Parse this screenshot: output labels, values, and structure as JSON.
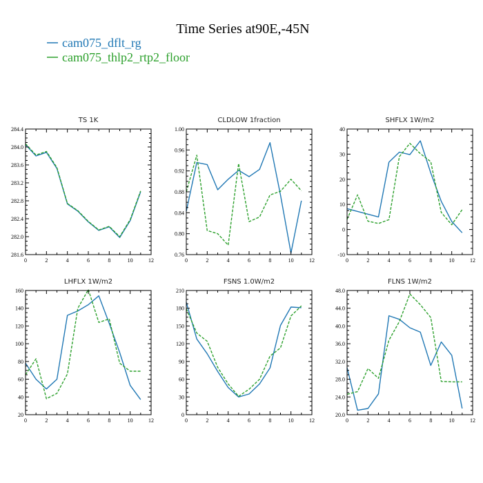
{
  "figure": {
    "title": "Time Series at90E,-45N",
    "legend": {
      "placement": "top-left",
      "entries": [
        {
          "label": "cam075_dflt_rg",
          "color": "#1f77b4",
          "dash": "solid"
        },
        {
          "label": "cam075_thlp2_rtp2_floor",
          "color": "#2ca02c",
          "dash": "dashed"
        }
      ]
    }
  },
  "chart_data": [
    {
      "type": "line",
      "title": "TS  1K",
      "x": [
        0,
        1,
        2,
        3,
        4,
        5,
        6,
        7,
        8,
        9,
        10,
        11
      ],
      "xlim": [
        0,
        12
      ],
      "xticks": [
        "0",
        "2",
        "4",
        "6",
        "8",
        "10",
        "12"
      ],
      "ylim": [
        281.6,
        284.4
      ],
      "yticks": [
        "281.6",
        "282.0",
        "282.4",
        "282.8",
        "283.2",
        "283.6",
        "284.0",
        "284.4"
      ],
      "series": [
        {
          "name": "cam075_dflt_rg",
          "color": "#1f77b4",
          "values": [
            284.05,
            283.8,
            283.88,
            283.52,
            282.73,
            282.57,
            282.33,
            282.14,
            282.22,
            281.98,
            282.36,
            283.0
          ]
        },
        {
          "name": "cam075_thlp2_rtp2_floor",
          "color": "#2ca02c",
          "values": [
            284.07,
            283.82,
            283.9,
            283.54,
            282.74,
            282.58,
            282.34,
            282.15,
            282.23,
            282.0,
            282.38,
            283.02
          ]
        }
      ]
    },
    {
      "type": "line",
      "title": "CLDLOW  1fraction",
      "x": [
        0,
        1,
        2,
        3,
        4,
        5,
        6,
        7,
        8,
        9,
        10,
        11
      ],
      "xlim": [
        0,
        12
      ],
      "xticks": [
        "0",
        "2",
        "4",
        "6",
        "8",
        "10",
        "12"
      ],
      "ylim": [
        0.76,
        1.0
      ],
      "yticks": [
        "0.76",
        "0.80",
        "0.84",
        "0.88",
        "0.92",
        "0.96",
        "1.00"
      ],
      "series": [
        {
          "name": "cam075_dflt_rg",
          "color": "#1f77b4",
          "values": [
            0.843,
            0.936,
            0.932,
            0.884,
            0.904,
            0.921,
            0.909,
            0.923,
            0.974,
            0.874,
            0.763,
            0.863
          ]
        },
        {
          "name": "cam075_thlp2_rtp2_floor",
          "color": "#2ca02c",
          "values": [
            0.88,
            0.95,
            0.806,
            0.8,
            0.778,
            0.934,
            0.823,
            0.832,
            0.874,
            0.881,
            0.904,
            0.882
          ]
        }
      ]
    },
    {
      "type": "line",
      "title": "SHFLX  1W/m2",
      "x": [
        0,
        1,
        2,
        3,
        4,
        5,
        6,
        7,
        8,
        9,
        10,
        11
      ],
      "xlim": [
        0,
        12
      ],
      "xticks": [
        "0",
        "2",
        "4",
        "6",
        "8",
        "10",
        "12"
      ],
      "ylim": [
        -10,
        40
      ],
      "yticks": [
        "-10",
        "0",
        "10",
        "20",
        "30",
        "40"
      ],
      "series": [
        {
          "name": "cam075_dflt_rg",
          "color": "#1f77b4",
          "values": [
            8.3,
            7.2,
            6.1,
            5.0,
            26.8,
            30.8,
            29.8,
            35.3,
            22.5,
            11.2,
            3.2,
            -1.3
          ]
        },
        {
          "name": "cam075_thlp2_rtp2_floor",
          "color": "#2ca02c",
          "values": [
            4.0,
            13.8,
            3.3,
            2.4,
            3.9,
            29.0,
            34.3,
            30.2,
            27.0,
            6.8,
            1.9,
            7.9
          ]
        }
      ]
    },
    {
      "type": "line",
      "title": "LHFLX  1W/m2",
      "x": [
        0,
        1,
        2,
        3,
        4,
        5,
        6,
        7,
        8,
        9,
        10,
        11
      ],
      "xlim": [
        0,
        12
      ],
      "xticks": [
        "0",
        "2",
        "4",
        "6",
        "8",
        "10",
        "12"
      ],
      "ylim": [
        20,
        160
      ],
      "yticks": [
        "20",
        "40",
        "60",
        "80",
        "100",
        "120",
        "140",
        "160"
      ],
      "series": [
        {
          "name": "cam075_dflt_rg",
          "color": "#1f77b4",
          "values": [
            78,
            60,
            49,
            60,
            132,
            137,
            144,
            154,
            123,
            90,
            53,
            37
          ]
        },
        {
          "name": "cam075_thlp2_rtp2_floor",
          "color": "#2ca02c",
          "values": [
            65,
            83,
            38,
            44,
            66,
            140,
            161,
            124,
            128,
            78,
            69,
            69
          ]
        }
      ]
    },
    {
      "type": "line",
      "title": "FSNS  1.0W/m2",
      "x": [
        0,
        1,
        2,
        3,
        4,
        5,
        6,
        7,
        8,
        9,
        10,
        11
      ],
      "xlim": [
        0,
        12
      ],
      "xticks": [
        "0",
        "2",
        "4",
        "6",
        "8",
        "10",
        "12"
      ],
      "ylim": [
        0,
        210
      ],
      "yticks": [
        "0",
        "30",
        "60",
        "90",
        "120",
        "150",
        "180",
        "210"
      ],
      "series": [
        {
          "name": "cam075_dflt_rg",
          "color": "#1f77b4",
          "values": [
            190,
            128,
            103,
            73,
            46,
            30,
            35,
            52,
            79,
            151,
            182,
            181
          ]
        },
        {
          "name": "cam075_thlp2_rtp2_floor",
          "color": "#2ca02c",
          "values": [
            179,
            138,
            124,
            80,
            52,
            31,
            43,
            60,
            99,
            113,
            167,
            184
          ]
        }
      ]
    },
    {
      "type": "line",
      "title": "FLNS  1W/m2",
      "x": [
        0,
        1,
        2,
        3,
        4,
        5,
        6,
        7,
        8,
        9,
        10,
        11
      ],
      "xlim": [
        0,
        12
      ],
      "xticks": [
        "0",
        "2",
        "4",
        "6",
        "8",
        "10",
        "12"
      ],
      "ylim": [
        20,
        48
      ],
      "yticks": [
        "20.0",
        "24.0",
        "28.0",
        "32.0",
        "36.0",
        "40.0",
        "44.0",
        "48.0"
      ],
      "series": [
        {
          "name": "cam075_dflt_rg",
          "color": "#1f77b4",
          "values": [
            30.6,
            21.0,
            21.4,
            24.7,
            42.3,
            41.5,
            39.6,
            38.6,
            31.1,
            36.4,
            33.4,
            21.4
          ]
        },
        {
          "name": "cam075_thlp2_rtp2_floor",
          "color": "#2ca02c",
          "values": [
            24.6,
            25.2,
            30.4,
            28.2,
            36.8,
            41.0,
            47.2,
            44.8,
            41.9,
            27.5,
            27.4,
            27.4
          ]
        }
      ]
    }
  ]
}
